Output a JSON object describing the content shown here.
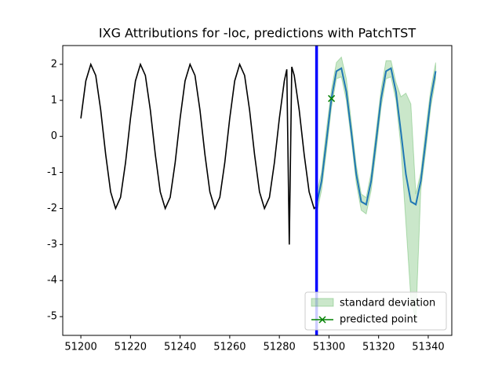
{
  "chart_data": {
    "type": "line",
    "title": "IXG Attributions for -loc, predictions with PatchTST",
    "xlim": [
      51192.7,
      51349.5
    ],
    "ylim": [
      -5.52,
      2.52
    ],
    "xticks": [
      51200,
      51220,
      51240,
      51260,
      51280,
      51300,
      51320,
      51340
    ],
    "yticks": [
      -5,
      -4,
      -3,
      -2,
      -1,
      0,
      1,
      2
    ],
    "cutoff": {
      "x": 51295,
      "color": "#0000ff"
    },
    "series": [
      {
        "color": "#000000",
        "x": [
          51200,
          51202,
          51204,
          51206,
          51208,
          51210,
          51212,
          51214,
          51216,
          51218,
          51220,
          51222,
          51224,
          51226,
          51228,
          51230,
          51232,
          51234,
          51236,
          51238,
          51240,
          51242,
          51244,
          51246,
          51248,
          51250,
          51252,
          51254,
          51256,
          51258,
          51260,
          51262,
          51264,
          51266,
          51268,
          51270,
          51272,
          51274,
          51276,
          51278,
          51280,
          51282,
          51283,
          51284,
          51285,
          51286,
          51288,
          51290,
          51292,
          51294,
          51295
        ],
        "values": [
          0.5,
          1.54,
          2.0,
          1.69,
          0.73,
          -0.5,
          -1.54,
          -2.0,
          -1.69,
          -0.73,
          0.5,
          1.54,
          2.0,
          1.69,
          0.73,
          -0.5,
          -1.54,
          -2.0,
          -1.69,
          -0.73,
          0.5,
          1.54,
          2.0,
          1.69,
          0.73,
          -0.5,
          -1.54,
          -2.0,
          -1.69,
          -0.73,
          0.5,
          1.54,
          2.0,
          1.69,
          0.73,
          -0.5,
          -1.54,
          -2.0,
          -1.69,
          -0.73,
          0.5,
          1.54,
          1.86,
          -3.0,
          1.93,
          1.69,
          0.73,
          -0.5,
          -1.54,
          -2.0,
          -1.94
        ]
      },
      {
        "color": "#1f77b4",
        "x": [
          51295,
          51297,
          51299,
          51301,
          51303,
          51305,
          51307,
          51309,
          51311,
          51313,
          51315,
          51317,
          51319,
          51321,
          51323,
          51325,
          51327,
          51329,
          51331,
          51333,
          51335,
          51337,
          51339,
          51341,
          51343
        ],
        "values": [
          -1.89,
          -1.24,
          -0.12,
          1.05,
          1.81,
          1.89,
          1.24,
          0.12,
          -1.05,
          -1.81,
          -1.89,
          -1.24,
          -0.12,
          1.05,
          1.81,
          1.89,
          1.24,
          0.12,
          -1.05,
          -1.81,
          -1.89,
          -1.24,
          -0.12,
          1.05,
          1.81
        ]
      }
    ],
    "band": {
      "name": "standard deviation",
      "color": "#2ca02c",
      "x": [
        51295,
        51297,
        51299,
        51301,
        51303,
        51305,
        51307,
        51309,
        51311,
        51313,
        51315,
        51317,
        51319,
        51321,
        51323,
        51325,
        51327,
        51329,
        51331,
        51333,
        51335,
        51337,
        51339,
        51341,
        51343
      ],
      "upper": [
        -1.6,
        -1.0,
        0.2,
        1.3,
        2.05,
        2.2,
        1.6,
        0.4,
        -0.8,
        -1.6,
        -1.7,
        -1.0,
        0.15,
        1.3,
        2.1,
        2.1,
        1.5,
        1.1,
        1.2,
        0.9,
        -1.6,
        -1.0,
        0.2,
        1.3,
        2.05
      ],
      "lower": [
        -2.15,
        -1.5,
        -0.4,
        0.8,
        1.6,
        1.65,
        1.0,
        -0.1,
        -1.3,
        -2.05,
        -2.15,
        -1.5,
        -0.4,
        0.8,
        1.6,
        1.65,
        1.0,
        -0.3,
        -2.4,
        -4.5,
        -5.1,
        -1.5,
        -0.4,
        0.8,
        1.6
      ]
    },
    "point": {
      "name": "predicted point",
      "color": "#008000",
      "x": 51301,
      "y": 1.05
    },
    "legend": "lower right"
  }
}
